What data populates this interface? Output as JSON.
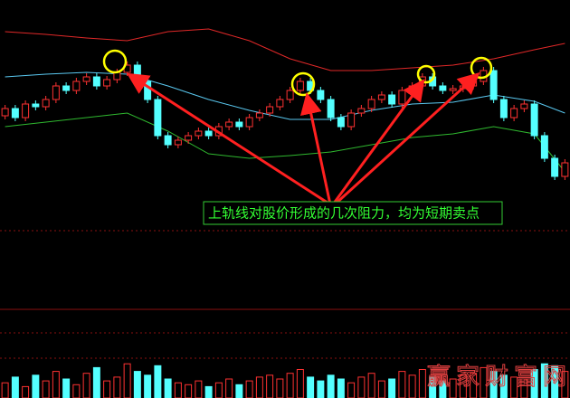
{
  "chart_data": {
    "type": "candlestick",
    "annotation": "上轨线对股价形成的几次阻力，均为短期卖点",
    "watermark": "赢家财富网",
    "up_color": "#ff3232",
    "down_color": "#54ffff",
    "xlim": [
      -0.5,
      55.5
    ],
    "ylim": [
      0,
      260
    ],
    "open": [
      132,
      140,
      130,
      145,
      142,
      150,
      165,
      160,
      170,
      175,
      165,
      172,
      180,
      188,
      170,
      150,
      110,
      100,
      105,
      110,
      115,
      110,
      120,
      125,
      120,
      130,
      135,
      142,
      150,
      160,
      170,
      160,
      150,
      130,
      120,
      135,
      140,
      150,
      155,
      145,
      160,
      165,
      175,
      165,
      160,
      162,
      165,
      170,
      182,
      150,
      130,
      140,
      145,
      110,
      85,
      65
    ],
    "high": [
      144,
      144,
      149,
      149,
      154,
      169,
      169,
      174,
      179,
      179,
      176,
      184,
      192,
      192,
      174,
      154,
      114,
      109,
      114,
      119,
      119,
      124,
      129,
      129,
      134,
      139,
      146,
      154,
      164,
      174,
      174,
      164,
      154,
      134,
      139,
      144,
      154,
      159,
      159,
      164,
      169,
      179,
      179,
      169,
      166,
      169,
      174,
      186,
      186,
      154,
      144,
      149,
      149,
      114,
      89,
      84
    ],
    "low": [
      128,
      126,
      126,
      138,
      138,
      146,
      156,
      156,
      166,
      161,
      161,
      168,
      176,
      166,
      146,
      106,
      96,
      96,
      101,
      106,
      106,
      106,
      116,
      116,
      116,
      126,
      131,
      138,
      146,
      156,
      156,
      146,
      126,
      116,
      116,
      131,
      136,
      146,
      141,
      141,
      156,
      161,
      161,
      156,
      156,
      158,
      161,
      166,
      146,
      126,
      126,
      136,
      106,
      81,
      61,
      61
    ],
    "close": [
      140,
      130,
      145,
      142,
      150,
      165,
      160,
      170,
      175,
      165,
      172,
      180,
      188,
      170,
      150,
      110,
      100,
      105,
      110,
      115,
      110,
      120,
      125,
      120,
      130,
      135,
      142,
      150,
      160,
      170,
      160,
      150,
      130,
      120,
      135,
      140,
      150,
      155,
      145,
      160,
      165,
      175,
      165,
      160,
      162,
      165,
      170,
      182,
      150,
      130,
      140,
      145,
      110,
      85,
      65,
      80
    ],
    "lines": [
      {
        "color": "#e02828",
        "x": [
          0,
          4,
          8,
          12,
          16,
          20,
          24,
          28,
          32,
          36,
          40,
          44,
          48,
          52,
          55
        ],
        "values": [
          225,
          222,
          218,
          215,
          225,
          228,
          215,
          195,
          182,
          182,
          185,
          188,
          195,
          205,
          212
        ]
      },
      {
        "color": "#5ac8f0",
        "x": [
          0,
          4,
          8,
          12,
          16,
          20,
          24,
          28,
          32,
          36,
          40,
          44,
          48,
          52,
          55
        ],
        "values": [
          175,
          178,
          180,
          178,
          165,
          150,
          138,
          128,
          128,
          138,
          145,
          147,
          155,
          148,
          135
        ]
      },
      {
        "color": "#2fb82f",
        "x": [
          0,
          4,
          8,
          12,
          16,
          20,
          24,
          28,
          32,
          36,
          40,
          44,
          48,
          52,
          55
        ],
        "values": [
          120,
          125,
          130,
          135,
          115,
          90,
          85,
          88,
          92,
          100,
          108,
          112,
          120,
          112,
          70
        ]
      }
    ],
    "volume": {
      "ylim": [
        0,
        100
      ],
      "values": [
        40,
        55,
        30,
        60,
        45,
        70,
        50,
        35,
        65,
        80,
        45,
        55,
        90,
        70,
        60,
        85,
        50,
        40,
        35,
        45,
        30,
        40,
        50,
        35,
        45,
        55,
        60,
        50,
        65,
        75,
        55,
        45,
        60,
        50,
        40,
        55,
        65,
        45,
        50,
        70,
        60,
        75,
        55,
        45,
        50,
        60,
        65,
        80,
        70,
        60,
        55,
        50,
        75,
        90,
        85,
        70
      ]
    }
  }
}
